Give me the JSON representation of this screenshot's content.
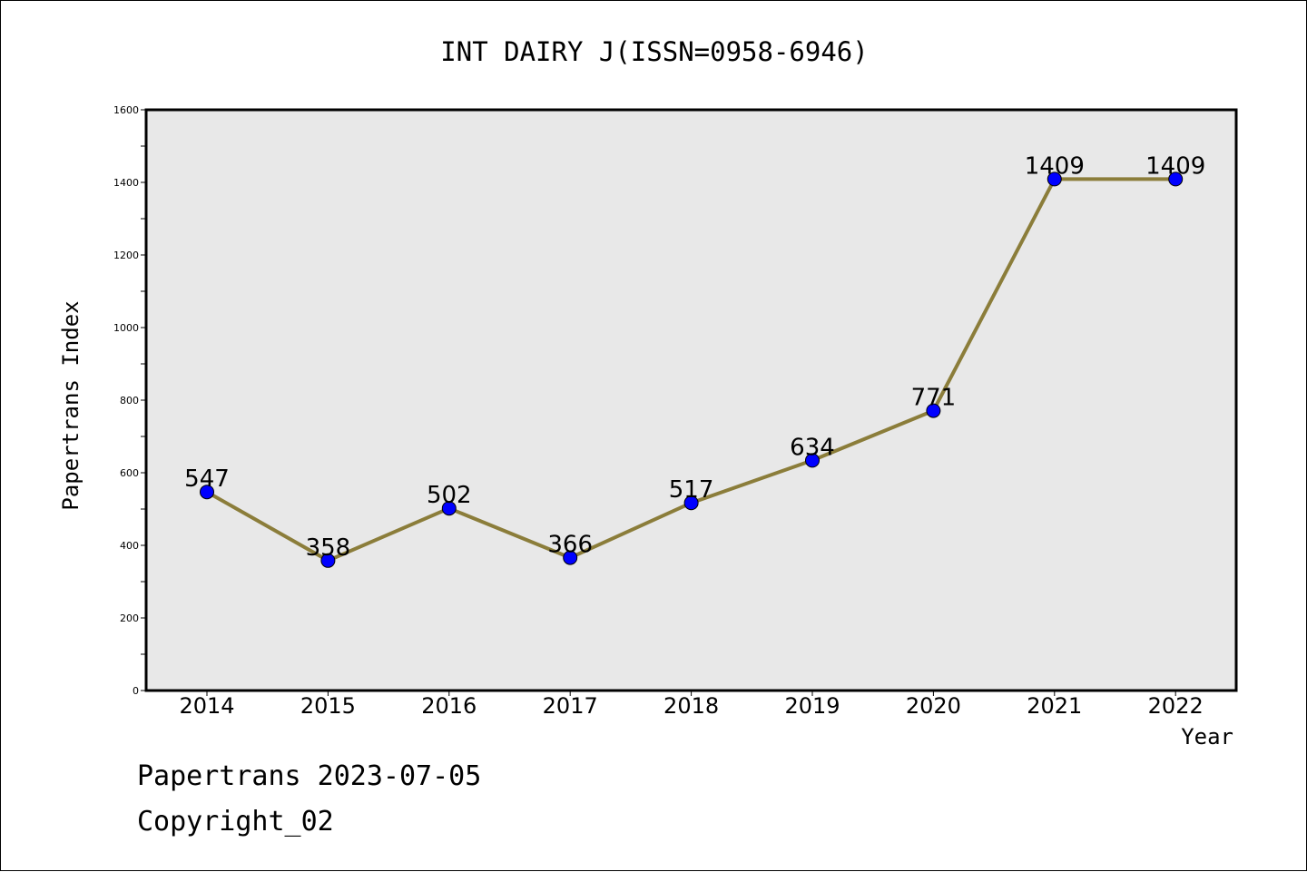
{
  "chart_data": {
    "type": "line",
    "title": "INT DAIRY J(ISSN=0958-6946)",
    "xlabel": "Year",
    "ylabel": "Papertrans Index",
    "x": [
      "2014",
      "2015",
      "2016",
      "2017",
      "2018",
      "2019",
      "2020",
      "2021",
      "2022"
    ],
    "series": [
      {
        "values": [
          547,
          358,
          502,
          366,
          517,
          634,
          771,
          1409,
          1409
        ],
        "line_color": "#8b7d3a",
        "marker_color": "#0000ff"
      }
    ],
    "y_ticks": [
      "0",
      "200",
      "400",
      "600",
      "800",
      "1000",
      "1200",
      "1400",
      "1600"
    ],
    "ylim": [
      0,
      1600
    ],
    "grid": false,
    "plot_background": "#e8e8e8",
    "data_labels": true
  },
  "footer": {
    "line1": "Papertrans 2023-07-05",
    "line2": "Copyright_02"
  }
}
